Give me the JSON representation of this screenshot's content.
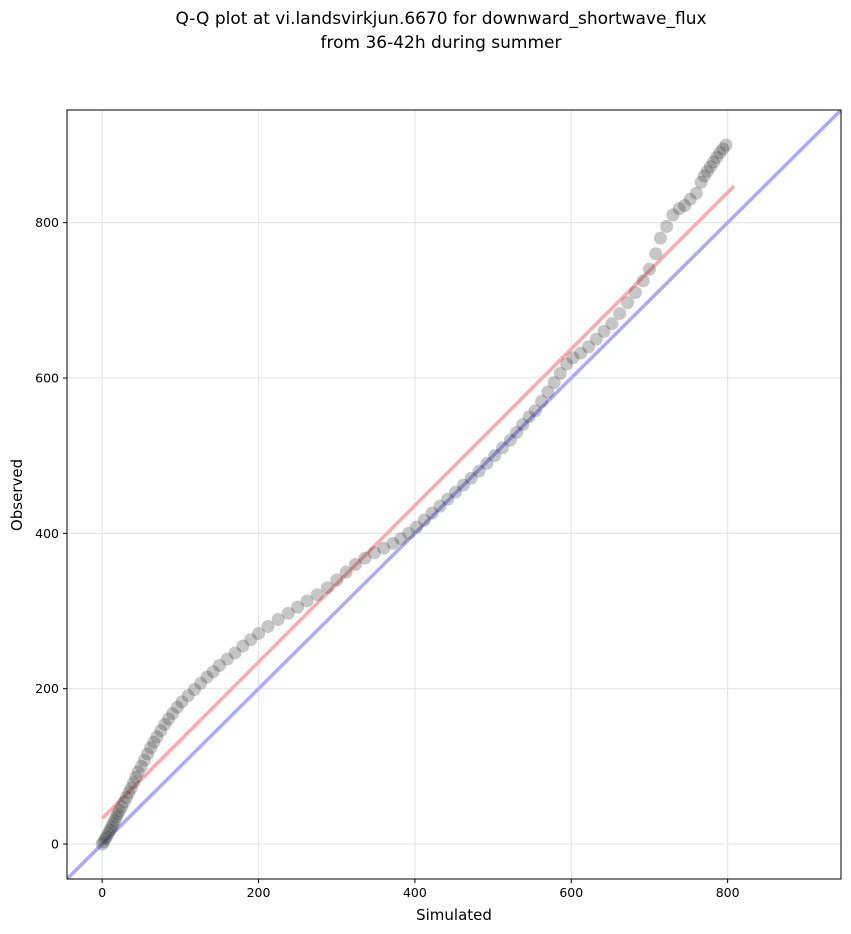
{
  "chart_data": {
    "type": "scatter",
    "title_line1": "Q-Q plot at vi.landsvirkjun.6670 for downward_shortwave_flux",
    "title_line2": "from 36-42h during summer",
    "xlabel": "Simulated",
    "ylabel": "Observed",
    "xlim": [
      -45,
      945
    ],
    "ylim": [
      -45,
      945
    ],
    "xticks": [
      0,
      200,
      400,
      600,
      800
    ],
    "yticks": [
      0,
      200,
      400,
      600,
      800
    ],
    "grid": true,
    "series": [
      {
        "color": "#333333",
        "quantiles": [
          [
            0,
            0
          ],
          [
            2,
            3
          ],
          [
            4,
            7
          ],
          [
            6,
            10
          ],
          [
            8,
            14
          ],
          [
            10,
            18
          ],
          [
            12,
            22
          ],
          [
            14,
            26
          ],
          [
            16,
            30
          ],
          [
            18,
            35
          ],
          [
            20,
            39
          ],
          [
            22,
            43
          ],
          [
            25,
            48
          ],
          [
            28,
            54
          ],
          [
            31,
            60
          ],
          [
            34,
            66
          ],
          [
            37,
            72
          ],
          [
            40,
            79
          ],
          [
            43,
            86
          ],
          [
            46,
            93
          ],
          [
            50,
            100
          ],
          [
            54,
            108
          ],
          [
            58,
            116
          ],
          [
            62,
            124
          ],
          [
            66,
            131
          ],
          [
            70,
            138
          ],
          [
            75,
            146
          ],
          [
            80,
            154
          ],
          [
            85,
            161
          ],
          [
            90,
            168
          ],
          [
            96,
            176
          ],
          [
            102,
            183
          ],
          [
            110,
            191
          ],
          [
            118,
            199
          ],
          [
            126,
            207
          ],
          [
            134,
            215
          ],
          [
            142,
            222
          ],
          [
            150,
            230
          ],
          [
            160,
            238
          ],
          [
            170,
            246
          ],
          [
            180,
            255
          ],
          [
            190,
            263
          ],
          [
            200,
            271
          ],
          [
            212,
            280
          ],
          [
            225,
            289
          ],
          [
            238,
            297
          ],
          [
            250,
            305
          ],
          [
            262,
            313
          ],
          [
            275,
            321
          ],
          [
            288,
            330
          ],
          [
            300,
            340
          ],
          [
            312,
            350
          ],
          [
            324,
            360
          ],
          [
            336,
            368
          ],
          [
            348,
            375
          ],
          [
            360,
            381
          ],
          [
            372,
            387
          ],
          [
            382,
            393
          ],
          [
            392,
            400
          ],
          [
            402,
            408
          ],
          [
            412,
            417
          ],
          [
            422,
            426
          ],
          [
            432,
            435
          ],
          [
            442,
            444
          ],
          [
            452,
            453
          ],
          [
            462,
            462
          ],
          [
            472,
            471
          ],
          [
            482,
            480
          ],
          [
            492,
            490
          ],
          [
            502,
            500
          ],
          [
            512,
            510
          ],
          [
            522,
            520
          ],
          [
            530,
            530
          ],
          [
            538,
            540
          ],
          [
            546,
            550
          ],
          [
            554,
            558
          ],
          [
            562,
            570
          ],
          [
            570,
            582
          ],
          [
            578,
            594
          ],
          [
            586,
            606
          ],
          [
            594,
            618
          ],
          [
            602,
            626
          ],
          [
            612,
            632
          ],
          [
            622,
            640
          ],
          [
            632,
            650
          ],
          [
            642,
            660
          ],
          [
            652,
            670
          ],
          [
            662,
            683
          ],
          [
            672,
            697
          ],
          [
            682,
            710
          ],
          [
            692,
            725
          ],
          [
            700,
            740
          ],
          [
            708,
            760
          ],
          [
            714,
            780
          ],
          [
            722,
            795
          ],
          [
            730,
            810
          ],
          [
            738,
            818
          ],
          [
            745,
            822
          ],
          [
            752,
            830
          ],
          [
            760,
            838
          ],
          [
            766,
            852
          ],
          [
            770,
            860
          ],
          [
            774,
            866
          ],
          [
            778,
            872
          ],
          [
            782,
            878
          ],
          [
            786,
            884
          ],
          [
            790,
            890
          ],
          [
            794,
            895
          ],
          [
            798,
            900
          ]
        ]
      }
    ],
    "reference_lines": [
      {
        "kind": "identity",
        "color": "#aaaaff",
        "from": [
          -45,
          -45
        ],
        "to": [
          945,
          945
        ]
      },
      {
        "kind": "fit",
        "color": "#ffaaaa",
        "from": [
          0,
          33
        ],
        "to": [
          808,
          847
        ]
      }
    ]
  }
}
